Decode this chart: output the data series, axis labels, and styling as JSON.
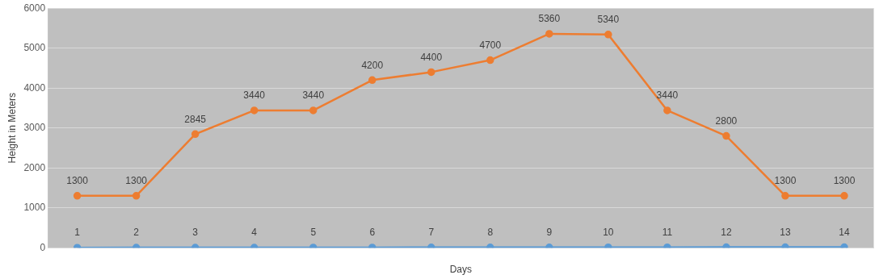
{
  "chart_data": {
    "type": "line",
    "xlabel": "Days",
    "ylabel": "Height in Meters",
    "categories": [
      null,
      null,
      null,
      null,
      null,
      null,
      null,
      null,
      null,
      null,
      null,
      null,
      null,
      null
    ],
    "series": [
      {
        "color": "#5b9bd5",
        "values": [
          1,
          2,
          3,
          4,
          5,
          6,
          7,
          8,
          9,
          10,
          11,
          12,
          13,
          14
        ]
      },
      {
        "color": "#ed7d31",
        "values": [
          1300,
          1300,
          2845,
          3440,
          3440,
          4200,
          4400,
          4700,
          5360,
          5340,
          3440,
          2800,
          1300,
          1300
        ]
      }
    ],
    "ylim": [
      0,
      6000
    ],
    "yticks": [
      0,
      1000,
      2000,
      3000,
      4000,
      5000,
      6000
    ],
    "grid": "y",
    "marker": "circle",
    "line_style": "solid",
    "data_labels": true,
    "legend": false
  }
}
